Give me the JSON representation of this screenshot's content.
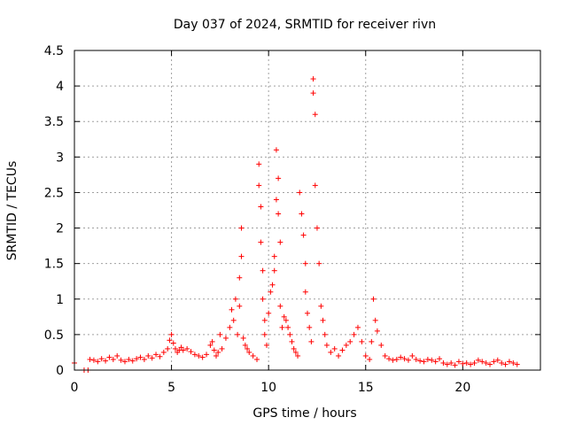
{
  "chart_data": {
    "type": "scatter",
    "title": "Day 037 of 2024, SRMTID for receiver rivn",
    "xlabel": "GPS time / hours",
    "ylabel": "SRMTID / TECUs",
    "xlim": [
      0,
      24
    ],
    "ylim": [
      0,
      4.5
    ],
    "xticks": [
      0,
      5,
      10,
      15,
      20
    ],
    "xtick_labels": [
      "0",
      "5",
      "10",
      "15",
      "20"
    ],
    "yticks": [
      0,
      0.5,
      1,
      1.5,
      2,
      2.5,
      3,
      3.5,
      4,
      4.5
    ],
    "ytick_labels": [
      "0",
      "0.5",
      "1",
      "1.5",
      "2",
      "2.5",
      "3",
      "3.5",
      "4",
      "4.5"
    ],
    "grid": true,
    "marker": "+",
    "color": "#ff0000",
    "series": [
      {
        "name": "SRMTID",
        "x": [
          0.0,
          0.5,
          0.7,
          0.8,
          1.0,
          1.2,
          1.4,
          1.6,
          1.8,
          2.0,
          2.2,
          2.4,
          2.6,
          2.8,
          3.0,
          3.2,
          3.4,
          3.6,
          3.8,
          4.0,
          4.2,
          4.4,
          4.6,
          4.8,
          4.9,
          5.0,
          5.1,
          5.2,
          5.3,
          5.4,
          5.5,
          5.6,
          5.8,
          6.0,
          6.2,
          6.4,
          6.6,
          6.8,
          7.0,
          7.1,
          7.2,
          7.3,
          7.4,
          7.5,
          7.6,
          7.8,
          8.0,
          8.1,
          8.2,
          8.3,
          8.4,
          8.5,
          8.5,
          8.6,
          8.6,
          8.7,
          8.8,
          8.9,
          9.0,
          9.2,
          9.4,
          9.5,
          9.5,
          9.6,
          9.6,
          9.7,
          9.7,
          9.8,
          9.8,
          9.9,
          10.0,
          10.1,
          10.2,
          10.3,
          10.3,
          10.4,
          10.4,
          10.5,
          10.5,
          10.6,
          10.6,
          10.7,
          10.8,
          10.9,
          11.0,
          11.1,
          11.2,
          11.3,
          11.4,
          11.5,
          11.6,
          11.7,
          11.8,
          11.9,
          11.9,
          12.0,
          12.1,
          12.2,
          12.3,
          12.3,
          12.4,
          12.4,
          12.5,
          12.6,
          12.7,
          12.8,
          12.9,
          13.0,
          13.2,
          13.4,
          13.6,
          13.8,
          14.0,
          14.2,
          14.4,
          14.6,
          14.8,
          15.0,
          15.2,
          15.3,
          15.4,
          15.5,
          15.6,
          15.8,
          16.0,
          16.2,
          16.4,
          16.6,
          16.8,
          17.0,
          17.2,
          17.4,
          17.6,
          17.8,
          18.0,
          18.2,
          18.4,
          18.6,
          18.8,
          19.0,
          19.2,
          19.4,
          19.6,
          19.8,
          20.0,
          20.2,
          20.4,
          20.6,
          20.8,
          21.0,
          21.2,
          21.4,
          21.6,
          21.8,
          22.0,
          22.2,
          22.4,
          22.6,
          22.8
        ],
        "y": [
          0.1,
          0.0,
          0.0,
          0.15,
          0.14,
          0.12,
          0.16,
          0.13,
          0.18,
          0.15,
          0.2,
          0.14,
          0.12,
          0.15,
          0.13,
          0.16,
          0.18,
          0.15,
          0.2,
          0.17,
          0.22,
          0.19,
          0.25,
          0.3,
          0.42,
          0.5,
          0.38,
          0.3,
          0.25,
          0.28,
          0.32,
          0.28,
          0.3,
          0.26,
          0.22,
          0.2,
          0.18,
          0.22,
          0.35,
          0.4,
          0.28,
          0.2,
          0.25,
          0.5,
          0.3,
          0.45,
          0.6,
          0.85,
          0.7,
          1.0,
          0.5,
          0.9,
          1.3,
          1.6,
          2.0,
          0.45,
          0.35,
          0.3,
          0.25,
          0.2,
          0.15,
          2.9,
          2.6,
          2.3,
          1.8,
          1.4,
          1.0,
          0.7,
          0.5,
          0.35,
          0.8,
          1.1,
          1.2,
          1.4,
          1.6,
          2.4,
          3.1,
          2.7,
          2.2,
          1.8,
          0.9,
          0.6,
          0.75,
          0.7,
          0.6,
          0.5,
          0.4,
          0.3,
          0.25,
          0.2,
          2.5,
          2.2,
          1.9,
          1.5,
          1.1,
          0.8,
          0.6,
          0.4,
          4.1,
          3.9,
          3.6,
          2.6,
          2.0,
          1.5,
          0.9,
          0.7,
          0.5,
          0.35,
          0.25,
          0.3,
          0.2,
          0.28,
          0.35,
          0.4,
          0.5,
          0.6,
          0.4,
          0.2,
          0.15,
          0.4,
          1.0,
          0.7,
          0.55,
          0.35,
          0.2,
          0.16,
          0.14,
          0.15,
          0.18,
          0.16,
          0.14,
          0.2,
          0.15,
          0.13,
          0.12,
          0.15,
          0.14,
          0.12,
          0.16,
          0.1,
          0.08,
          0.1,
          0.07,
          0.12,
          0.09,
          0.1,
          0.08,
          0.1,
          0.14,
          0.12,
          0.1,
          0.08,
          0.12,
          0.14,
          0.1,
          0.08,
          0.12,
          0.1,
          0.08
        ]
      }
    ]
  }
}
